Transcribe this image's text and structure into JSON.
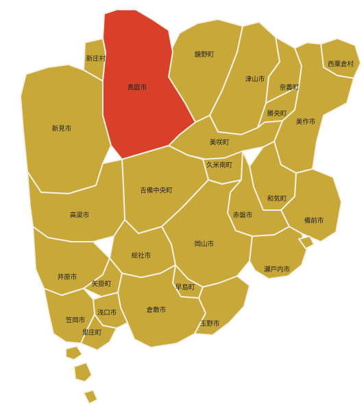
{
  "map": {
    "fill_color": "#c8a838",
    "highlight_color": "#d8402a",
    "border_color": "#f4f1e4",
    "highlighted": "maniwa"
  },
  "municipalities": [
    {
      "id": "maniwa",
      "label": "真庭市"
    },
    {
      "id": "shinjo",
      "label": "新庄村"
    },
    {
      "id": "kagamino",
      "label": "鏡野町"
    },
    {
      "id": "nishiawakura",
      "label": "西粟倉村"
    },
    {
      "id": "tsuyama",
      "label": "津山市"
    },
    {
      "id": "nagi",
      "label": "奈義町"
    },
    {
      "id": "shoo",
      "label": "勝央町"
    },
    {
      "id": "mimasaka",
      "label": "美作市"
    },
    {
      "id": "niimi",
      "label": "新見市"
    },
    {
      "id": "misaki",
      "label": "美咲町"
    },
    {
      "id": "kumenan",
      "label": "久米南町"
    },
    {
      "id": "kibichuo",
      "label": "吉備中央町"
    },
    {
      "id": "wake",
      "label": "和気町"
    },
    {
      "id": "takahashi",
      "label": "高梁市"
    },
    {
      "id": "akaiwa",
      "label": "赤磐市"
    },
    {
      "id": "bizen",
      "label": "備前市"
    },
    {
      "id": "okayama",
      "label": "岡山市"
    },
    {
      "id": "soja",
      "label": "総社市"
    },
    {
      "id": "setouchi",
      "label": "瀬戸内市"
    },
    {
      "id": "ibara",
      "label": "井原市"
    },
    {
      "id": "yakage",
      "label": "矢掛町"
    },
    {
      "id": "hayashima",
      "label": "早島町"
    },
    {
      "id": "asakuchi",
      "label": "浅口市"
    },
    {
      "id": "kurashiki",
      "label": "倉敷市"
    },
    {
      "id": "kasaoka",
      "label": "笠岡市"
    },
    {
      "id": "tamano",
      "label": "玉野市"
    },
    {
      "id": "satosho",
      "label": "里庄町"
    }
  ]
}
